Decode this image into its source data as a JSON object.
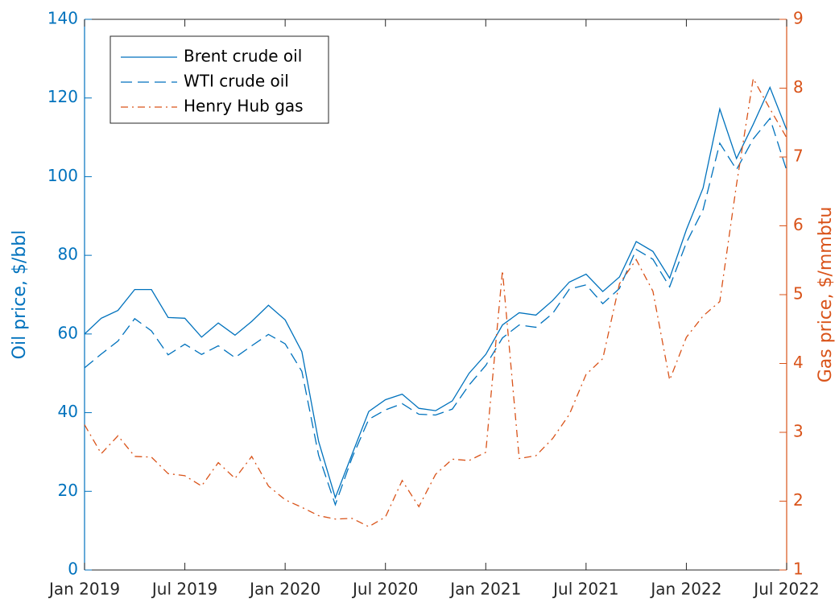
{
  "chart_data": {
    "type": "line",
    "y_label": "Oil price, $/bbl",
    "y2_label": "Gas price, $/mmbtu",
    "y_color": "#0072bd",
    "y2_color": "#d95319",
    "legend": "upper left",
    "categories": [
      "2019-01",
      "2019-02",
      "2019-03",
      "2019-04",
      "2019-05",
      "2019-06",
      "2019-07",
      "2019-08",
      "2019-09",
      "2019-10",
      "2019-11",
      "2019-12",
      "2020-01",
      "2020-02",
      "2020-03",
      "2020-04",
      "2020-05",
      "2020-06",
      "2020-07",
      "2020-08",
      "2020-09",
      "2020-10",
      "2020-11",
      "2020-12",
      "2021-01",
      "2021-02",
      "2021-03",
      "2021-04",
      "2021-05",
      "2021-06",
      "2021-07",
      "2021-08",
      "2021-09",
      "2021-10",
      "2021-11",
      "2021-12",
      "2022-01",
      "2022-02",
      "2022-03",
      "2022-04",
      "2022-05",
      "2022-06",
      "2022-07"
    ],
    "xticks": [
      {
        "value": "2019-01",
        "label": "Jan 2019"
      },
      {
        "value": "2019-07",
        "label": "Jul 2019"
      },
      {
        "value": "2020-01",
        "label": "Jan 2020"
      },
      {
        "value": "2020-07",
        "label": "Jul 2020"
      },
      {
        "value": "2021-01",
        "label": "Jan 2021"
      },
      {
        "value": "2021-07",
        "label": "Jul 2021"
      },
      {
        "value": "2022-01",
        "label": "Jan 2022"
      },
      {
        "value": "2022-07",
        "label": "Jul 2022"
      }
    ],
    "ylim": [
      0,
      140
    ],
    "yticks": [
      0,
      20,
      40,
      60,
      80,
      100,
      120,
      140
    ],
    "y2lim": [
      1,
      9
    ],
    "y2ticks": [
      1,
      2,
      3,
      4,
      5,
      6,
      7,
      8,
      9
    ],
    "series": [
      {
        "name": "Brent crude oil",
        "color": "#0072bd",
        "dash": "solid",
        "values": [
          60,
          64,
          66,
          71.3,
          71.3,
          64.2,
          64,
          59.2,
          62.8,
          59.7,
          63.2,
          67.3,
          63.6,
          55.5,
          32.7,
          18.4,
          29.4,
          40.3,
          43.3,
          44.7,
          41.1,
          40.5,
          43,
          50,
          54.8,
          62.3,
          65.4,
          64.8,
          68.5,
          73.2,
          75.2,
          70.8,
          74.5,
          83.5,
          81,
          74.2,
          86.5,
          97.1,
          117.2,
          104.6,
          113.3,
          122.7,
          111.9
        ]
      },
      {
        "name": "WTI crude oil",
        "color": "#0072bd",
        "dash": "dashed",
        "values": [
          51.4,
          54.9,
          58.2,
          63.9,
          60.8,
          54.7,
          57.4,
          54.8,
          57,
          54,
          57,
          59.9,
          57.5,
          50.5,
          29.2,
          16.6,
          28.5,
          38.3,
          40.7,
          42.3,
          39.6,
          39.4,
          40.9,
          47,
          52,
          59,
          62.3,
          61.7,
          65.2,
          71.4,
          72.5,
          67.7,
          71.6,
          81.5,
          79,
          72,
          83.2,
          91.6,
          108.5,
          101.8,
          109.6,
          114.8,
          101.6
        ]
      },
      {
        "name": "Henry Hub gas",
        "color": "#d95319",
        "dash": "dashdot",
        "axis": "y2",
        "values": [
          3.11,
          2.69,
          2.95,
          2.65,
          2.64,
          2.4,
          2.37,
          2.22,
          2.56,
          2.33,
          2.65,
          2.22,
          2.02,
          1.91,
          1.79,
          1.74,
          1.75,
          1.63,
          1.77,
          2.3,
          1.92,
          2.39,
          2.61,
          2.59,
          2.71,
          5.35,
          2.62,
          2.66,
          2.91,
          3.26,
          3.84,
          4.07,
          5.16,
          5.51,
          5.05,
          3.76,
          4.38,
          4.69,
          4.9,
          6.6,
          8.14,
          7.7,
          7.28
        ]
      }
    ]
  }
}
